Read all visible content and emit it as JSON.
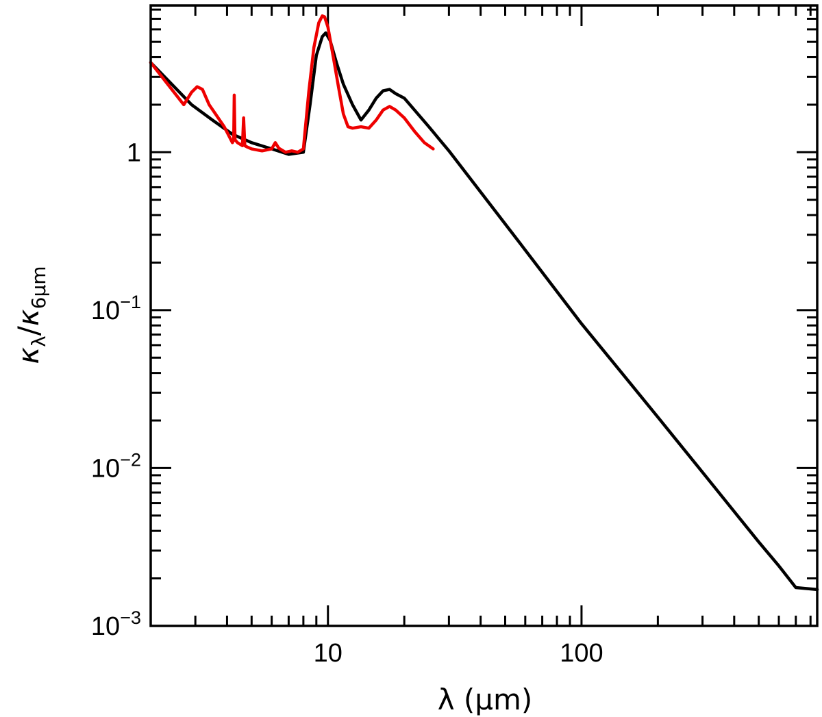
{
  "chart_data": {
    "type": "line",
    "title": "",
    "xlabel": "λ (μm)",
    "ylabel": "κλ/κ6μm",
    "ylabel_parts": {
      "kappa": "κ",
      "sub_num": "λ",
      "slash": "/",
      "kappa2": "κ",
      "sub_den": "6μm"
    },
    "x_scale": "log",
    "y_scale": "log",
    "xlim": [
      2.0,
      850.0
    ],
    "ylim": [
      0.001,
      8.5
    ],
    "grid": false,
    "legend": "none",
    "x_ticks": [
      {
        "value": 10,
        "label": "10"
      },
      {
        "value": 100,
        "label": "100"
      }
    ],
    "y_ticks": [
      {
        "value": 1,
        "label": "1",
        "base": "",
        "exp": ""
      },
      {
        "value": 0.1,
        "label": "10−1",
        "base": "10",
        "exp": "−1"
      },
      {
        "value": 0.01,
        "label": "10−2",
        "base": "10",
        "exp": "−2"
      },
      {
        "value": 0.001,
        "label": "10−3",
        "base": "10",
        "exp": "−3"
      }
    ],
    "series": [
      {
        "color": "#000000",
        "x": [
          2.0,
          2.9,
          3.5,
          4.2,
          5.0,
          6.0,
          7.0,
          8.0,
          8.5,
          9.0,
          9.5,
          9.8,
          10.2,
          10.8,
          11.5,
          12.5,
          13.5,
          14.5,
          15.5,
          16.5,
          17.5,
          18.5,
          20.0,
          25.0,
          30.0,
          40.0,
          60.0,
          100.0,
          150.0,
          200.0,
          300.0,
          400.0,
          500.0,
          600.0,
          700.0,
          850.0
        ],
        "y": [
          3.7,
          2.0,
          1.6,
          1.3,
          1.15,
          1.05,
          0.97,
          1.0,
          2.0,
          4.1,
          5.4,
          5.7,
          5.1,
          3.7,
          2.7,
          2.0,
          1.6,
          1.85,
          2.2,
          2.45,
          2.5,
          2.35,
          2.2,
          1.45,
          1.02,
          0.56,
          0.24,
          0.082,
          0.037,
          0.021,
          0.0094,
          0.0053,
          0.0034,
          0.0024,
          0.00175,
          0.0017
        ]
      },
      {
        "color": "#ee0000",
        "x": [
          2.0,
          2.7,
          2.9,
          3.05,
          3.2,
          3.4,
          3.6,
          3.9,
          4.2,
          4.25,
          4.27,
          4.3,
          4.4,
          4.6,
          4.65,
          4.7,
          4.8,
          5.0,
          5.5,
          6.0,
          6.2,
          6.4,
          6.8,
          7.2,
          7.6,
          8.0,
          8.4,
          8.8,
          9.2,
          9.5,
          9.7,
          10.0,
          10.5,
          11.0,
          11.5,
          12.0,
          12.5,
          13.5,
          14.5,
          15.5,
          16.5,
          17.5,
          18.5,
          20.0,
          22.0,
          24.0,
          26.0
        ],
        "y": [
          3.7,
          2.0,
          2.4,
          2.6,
          2.5,
          2.0,
          1.75,
          1.45,
          1.15,
          1.2,
          2.3,
          1.2,
          1.15,
          1.1,
          1.65,
          1.1,
          1.08,
          1.05,
          1.02,
          1.05,
          1.15,
          1.06,
          1.0,
          1.02,
          1.0,
          1.05,
          2.4,
          4.6,
          6.6,
          7.3,
          7.2,
          6.2,
          4.0,
          2.6,
          1.75,
          1.45,
          1.42,
          1.45,
          1.42,
          1.6,
          1.85,
          1.95,
          1.85,
          1.65,
          1.35,
          1.15,
          1.05
        ]
      }
    ]
  }
}
